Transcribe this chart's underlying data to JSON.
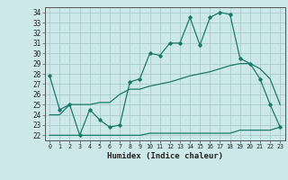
{
  "x": [
    0,
    1,
    2,
    3,
    4,
    5,
    6,
    7,
    8,
    9,
    10,
    11,
    12,
    13,
    14,
    15,
    16,
    17,
    18,
    19,
    20,
    21,
    22,
    23
  ],
  "line1": [
    27.8,
    24.5,
    25.0,
    22.0,
    24.5,
    23.5,
    22.8,
    23.0,
    27.2,
    27.5,
    30.0,
    29.8,
    31.0,
    31.0,
    33.5,
    30.8,
    33.5,
    34.0,
    33.8,
    29.5,
    29.0,
    27.5,
    25.0,
    22.8
  ],
  "line2": [
    24.0,
    24.0,
    25.0,
    25.0,
    25.0,
    25.2,
    25.2,
    26.0,
    26.5,
    26.5,
    26.8,
    27.0,
    27.2,
    27.5,
    27.8,
    28.0,
    28.2,
    28.5,
    28.8,
    29.0,
    29.0,
    28.5,
    27.5,
    25.0
  ],
  "line3": [
    22.0,
    22.0,
    22.0,
    22.0,
    22.0,
    22.0,
    22.0,
    22.0,
    22.0,
    22.0,
    22.2,
    22.2,
    22.2,
    22.2,
    22.2,
    22.2,
    22.2,
    22.2,
    22.2,
    22.5,
    22.5,
    22.5,
    22.5,
    22.8
  ],
  "line_color": "#1a7a6a",
  "bg_color": "#cce8e8",
  "grid_color": "#aacccc",
  "xlabel": "Humidex (Indice chaleur)",
  "xlim": [
    -0.5,
    23.5
  ],
  "ylim": [
    21.5,
    34.5
  ],
  "yticks": [
    22,
    23,
    24,
    25,
    26,
    27,
    28,
    29,
    30,
    31,
    32,
    33,
    34
  ],
  "xtick_labels": [
    "0",
    "1",
    "2",
    "3",
    "4",
    "5",
    "6",
    "7",
    "8",
    "9",
    "10",
    "11",
    "12",
    "13",
    "14",
    "15",
    "16",
    "17",
    "18",
    "19",
    "20",
    "21",
    "22",
    "23"
  ]
}
